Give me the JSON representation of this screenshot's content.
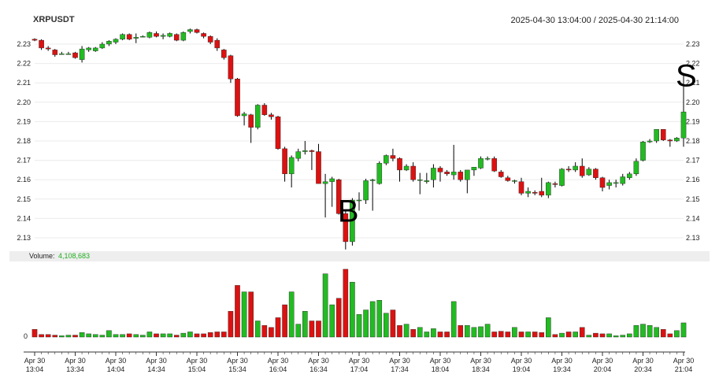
{
  "symbol": "XRPUSDT",
  "time_range": "2025-04-30 13:04:00 / 2025-04-30 21:14:00",
  "volume_label": "Volume:",
  "volume_value": "4,108,683",
  "volume_axis_label": "0",
  "colors": {
    "up": "#22bb22",
    "down": "#dd1111",
    "grid": "#ebebeb",
    "volume_band": "#eeeeee"
  },
  "chart_data": {
    "type": "candlestick",
    "y_ticks": [
      "2.23",
      "2.22",
      "2.21",
      "2.20",
      "2.19",
      "2.18",
      "2.17",
      "2.16",
      "2.15",
      "2.14",
      "2.13"
    ],
    "x_ticks": [
      [
        "Apr 30",
        "13:04"
      ],
      [
        "Apr 30",
        "13:34"
      ],
      [
        "Apr 30",
        "14:04"
      ],
      [
        "Apr 30",
        "14:34"
      ],
      [
        "Apr 30",
        "15:04"
      ],
      [
        "Apr 30",
        "15:34"
      ],
      [
        "Apr 30",
        "16:04"
      ],
      [
        "Apr 30",
        "16:34"
      ],
      [
        "Apr 30",
        "17:04"
      ],
      [
        "Apr 30",
        "17:34"
      ],
      [
        "Apr 30",
        "18:04"
      ],
      [
        "Apr 30",
        "18:34"
      ],
      [
        "Apr 30",
        "19:04"
      ],
      [
        "Apr 30",
        "19:34"
      ],
      [
        "Apr 30",
        "20:04"
      ],
      [
        "Apr 30",
        "20:34"
      ],
      [
        "Apr 30",
        "21:04"
      ]
    ],
    "candles": [
      {
        "o": 2.2325,
        "h": 2.233,
        "l": 2.2315,
        "c": 2.232,
        "v": 0.12
      },
      {
        "o": 2.232,
        "h": 2.2325,
        "l": 2.227,
        "c": 2.228,
        "v": 0.04
      },
      {
        "o": 2.228,
        "h": 2.229,
        "l": 2.2265,
        "c": 2.2275,
        "v": 0.04
      },
      {
        "o": 2.227,
        "h": 2.2275,
        "l": 2.2235,
        "c": 2.2245,
        "v": 0.03
      },
      {
        "o": 2.225,
        "h": 2.226,
        "l": 2.2245,
        "c": 2.225,
        "v": 0.02
      },
      {
        "o": 2.225,
        "h": 2.226,
        "l": 2.2245,
        "c": 2.225,
        "v": 0.03
      },
      {
        "o": 2.2255,
        "h": 2.226,
        "l": 2.2225,
        "c": 2.223,
        "v": 0.03
      },
      {
        "o": 2.222,
        "h": 2.229,
        "l": 2.2205,
        "c": 2.2275,
        "v": 0.07
      },
      {
        "o": 2.227,
        "h": 2.2285,
        "l": 2.226,
        "c": 2.228,
        "v": 0.05
      },
      {
        "o": 2.2265,
        "h": 2.2285,
        "l": 2.226,
        "c": 2.228,
        "v": 0.04
      },
      {
        "o": 2.228,
        "h": 2.231,
        "l": 2.2275,
        "c": 2.23,
        "v": 0.03
      },
      {
        "o": 2.23,
        "h": 2.232,
        "l": 2.229,
        "c": 2.2315,
        "v": 0.1
      },
      {
        "o": 2.231,
        "h": 2.233,
        "l": 2.23,
        "c": 2.2325,
        "v": 0.04
      },
      {
        "o": 2.2325,
        "h": 2.2355,
        "l": 2.232,
        "c": 2.235,
        "v": 0.04
      },
      {
        "o": 2.235,
        "h": 2.2355,
        "l": 2.232,
        "c": 2.2325,
        "v": 0.05
      },
      {
        "o": 2.233,
        "h": 2.2355,
        "l": 2.2305,
        "c": 2.2335,
        "v": 0.04
      },
      {
        "o": 2.234,
        "h": 2.2345,
        "l": 2.2335,
        "c": 2.234,
        "v": 0.03
      },
      {
        "o": 2.2335,
        "h": 2.2365,
        "l": 2.233,
        "c": 2.236,
        "v": 0.08
      },
      {
        "o": 2.2355,
        "h": 2.2365,
        "l": 2.2335,
        "c": 2.234,
        "v": 0.05
      },
      {
        "o": 2.234,
        "h": 2.2355,
        "l": 2.2325,
        "c": 2.2345,
        "v": 0.05
      },
      {
        "o": 2.234,
        "h": 2.236,
        "l": 2.2335,
        "c": 2.2355,
        "v": 0.05
      },
      {
        "o": 2.235,
        "h": 2.2355,
        "l": 2.2315,
        "c": 2.232,
        "v": 0.03
      },
      {
        "o": 2.232,
        "h": 2.2365,
        "l": 2.2315,
        "c": 2.236,
        "v": 0.06
      },
      {
        "o": 2.2365,
        "h": 2.238,
        "l": 2.2355,
        "c": 2.2375,
        "v": 0.08
      },
      {
        "o": 2.2375,
        "h": 2.238,
        "l": 2.2355,
        "c": 2.236,
        "v": 0.05
      },
      {
        "o": 2.2355,
        "h": 2.236,
        "l": 2.233,
        "c": 2.234,
        "v": 0.05
      },
      {
        "o": 2.234,
        "h": 2.2345,
        "l": 2.23,
        "c": 2.231,
        "v": 0.07
      },
      {
        "o": 2.232,
        "h": 2.233,
        "l": 2.2265,
        "c": 2.228,
        "v": 0.08
      },
      {
        "o": 2.227,
        "h": 2.2275,
        "l": 2.222,
        "c": 2.223,
        "v": 0.08
      },
      {
        "o": 2.224,
        "h": 2.2245,
        "l": 2.21,
        "c": 2.212,
        "v": 0.4
      },
      {
        "o": 2.212,
        "h": 2.2125,
        "l": 2.1925,
        "c": 2.193,
        "v": 0.8
      },
      {
        "o": 2.193,
        "h": 2.195,
        "l": 2.188,
        "c": 2.194,
        "v": 0.7
      },
      {
        "o": 2.1935,
        "h": 2.194,
        "l": 2.179,
        "c": 2.187,
        "v": 0.7
      },
      {
        "o": 2.187,
        "h": 2.199,
        "l": 2.186,
        "c": 2.1985,
        "v": 0.25
      },
      {
        "o": 2.1985,
        "h": 2.1995,
        "l": 2.193,
        "c": 2.1935,
        "v": 0.18
      },
      {
        "o": 2.1935,
        "h": 2.1945,
        "l": 2.191,
        "c": 2.1925,
        "v": 0.15
      },
      {
        "o": 2.1925,
        "h": 2.193,
        "l": 2.1755,
        "c": 2.176,
        "v": 0.3
      },
      {
        "o": 2.176,
        "h": 2.177,
        "l": 2.159,
        "c": 2.163,
        "v": 0.5
      },
      {
        "o": 2.163,
        "h": 2.1725,
        "l": 2.156,
        "c": 2.1715,
        "v": 0.7
      },
      {
        "o": 2.171,
        "h": 2.176,
        "l": 2.1695,
        "c": 2.1745,
        "v": 0.2
      },
      {
        "o": 2.1745,
        "h": 2.18,
        "l": 2.173,
        "c": 2.175,
        "v": 0.4
      },
      {
        "o": 2.175,
        "h": 2.1755,
        "l": 2.165,
        "c": 2.1745,
        "v": 0.25
      },
      {
        "o": 2.1745,
        "h": 2.1785,
        "l": 2.158,
        "c": 2.158,
        "v": 0.25
      },
      {
        "o": 2.158,
        "h": 2.163,
        "l": 2.1405,
        "c": 2.159,
        "v": 0.98
      },
      {
        "o": 2.159,
        "h": 2.1615,
        "l": 2.146,
        "c": 2.1605,
        "v": 0.5
      },
      {
        "o": 2.16,
        "h": 2.1605,
        "l": 2.142,
        "c": 2.1425,
        "v": 0.6
      },
      {
        "o": 2.1425,
        "h": 2.144,
        "l": 2.124,
        "c": 2.128,
        "v": 1.05
      },
      {
        "o": 2.128,
        "h": 2.1505,
        "l": 2.126,
        "c": 2.1495,
        "v": 0.85
      },
      {
        "o": 2.1495,
        "h": 2.1535,
        "l": 2.144,
        "c": 2.1495,
        "v": 0.35
      },
      {
        "o": 2.1495,
        "h": 2.1605,
        "l": 2.1475,
        "c": 2.1595,
        "v": 0.42
      },
      {
        "o": 2.1595,
        "h": 2.1605,
        "l": 2.144,
        "c": 2.16,
        "v": 0.55
      },
      {
        "o": 2.158,
        "h": 2.1695,
        "l": 2.1575,
        "c": 2.1685,
        "v": 0.57
      },
      {
        "o": 2.1685,
        "h": 2.173,
        "l": 2.1675,
        "c": 2.1725,
        "v": 0.37
      },
      {
        "o": 2.1725,
        "h": 2.176,
        "l": 2.1695,
        "c": 2.171,
        "v": 0.42
      },
      {
        "o": 2.171,
        "h": 2.1715,
        "l": 2.159,
        "c": 2.165,
        "v": 0.18
      },
      {
        "o": 2.165,
        "h": 2.168,
        "l": 2.1645,
        "c": 2.167,
        "v": 0.2
      },
      {
        "o": 2.167,
        "h": 2.169,
        "l": 2.159,
        "c": 2.16,
        "v": 0.12
      },
      {
        "o": 2.16,
        "h": 2.1635,
        "l": 2.1525,
        "c": 2.16,
        "v": 0.15
      },
      {
        "o": 2.159,
        "h": 2.1635,
        "l": 2.158,
        "c": 2.1595,
        "v": 0.08
      },
      {
        "o": 2.16,
        "h": 2.168,
        "l": 2.156,
        "c": 2.166,
        "v": 0.13
      },
      {
        "o": 2.166,
        "h": 2.167,
        "l": 2.159,
        "c": 2.164,
        "v": 0.08
      },
      {
        "o": 2.164,
        "h": 2.165,
        "l": 2.162,
        "c": 2.163,
        "v": 0.08
      },
      {
        "o": 2.1625,
        "h": 2.178,
        "l": 2.16,
        "c": 2.164,
        "v": 0.55
      },
      {
        "o": 2.164,
        "h": 2.165,
        "l": 2.159,
        "c": 2.16,
        "v": 0.18
      },
      {
        "o": 2.16,
        "h": 2.165,
        "l": 2.153,
        "c": 2.165,
        "v": 0.18
      },
      {
        "o": 2.165,
        "h": 2.1665,
        "l": 2.162,
        "c": 2.1665,
        "v": 0.15
      },
      {
        "o": 2.166,
        "h": 2.172,
        "l": 2.1655,
        "c": 2.171,
        "v": 0.16
      },
      {
        "o": 2.171,
        "h": 2.172,
        "l": 2.17,
        "c": 2.171,
        "v": 0.2
      },
      {
        "o": 2.171,
        "h": 2.172,
        "l": 2.164,
        "c": 2.1645,
        "v": 0.08
      },
      {
        "o": 2.164,
        "h": 2.165,
        "l": 2.161,
        "c": 2.1615,
        "v": 0.09
      },
      {
        "o": 2.161,
        "h": 2.162,
        "l": 2.159,
        "c": 2.1595,
        "v": 0.08
      },
      {
        "o": 2.1595,
        "h": 2.16,
        "l": 2.158,
        "c": 2.1595,
        "v": 0.15
      },
      {
        "o": 2.159,
        "h": 2.161,
        "l": 2.152,
        "c": 2.153,
        "v": 0.08
      },
      {
        "o": 2.153,
        "h": 2.156,
        "l": 2.151,
        "c": 2.154,
        "v": 0.08
      },
      {
        "o": 2.1535,
        "h": 2.1545,
        "l": 2.152,
        "c": 2.153,
        "v": 0.08
      },
      {
        "o": 2.154,
        "h": 2.161,
        "l": 2.151,
        "c": 2.152,
        "v": 0.07
      },
      {
        "o": 2.152,
        "h": 2.159,
        "l": 2.1505,
        "c": 2.1585,
        "v": 0.3
      },
      {
        "o": 2.158,
        "h": 2.159,
        "l": 2.156,
        "c": 2.1575,
        "v": 0.04
      },
      {
        "o": 2.157,
        "h": 2.166,
        "l": 2.1565,
        "c": 2.1655,
        "v": 0.06
      },
      {
        "o": 2.1655,
        "h": 2.167,
        "l": 2.164,
        "c": 2.165,
        "v": 0.08
      },
      {
        "o": 2.165,
        "h": 2.169,
        "l": 2.164,
        "c": 2.167,
        "v": 0.08
      },
      {
        "o": 2.167,
        "h": 2.171,
        "l": 2.161,
        "c": 2.162,
        "v": 0.15
      },
      {
        "o": 2.1625,
        "h": 2.1665,
        "l": 2.162,
        "c": 2.1655,
        "v": 0.03
      },
      {
        "o": 2.1655,
        "h": 2.166,
        "l": 2.16,
        "c": 2.161,
        "v": 0.06
      },
      {
        "o": 2.161,
        "h": 2.1615,
        "l": 2.154,
        "c": 2.156,
        "v": 0.05
      },
      {
        "o": 2.157,
        "h": 2.16,
        "l": 2.155,
        "c": 2.1585,
        "v": 0.05
      },
      {
        "o": 2.1585,
        "h": 2.16,
        "l": 2.156,
        "c": 2.1585,
        "v": 0.02
      },
      {
        "o": 2.158,
        "h": 2.163,
        "l": 2.157,
        "c": 2.1615,
        "v": 0.03
      },
      {
        "o": 2.161,
        "h": 2.164,
        "l": 2.16,
        "c": 2.163,
        "v": 0.05
      },
      {
        "o": 2.163,
        "h": 2.171,
        "l": 2.162,
        "c": 2.1695,
        "v": 0.18
      },
      {
        "o": 2.17,
        "h": 2.18,
        "l": 2.1695,
        "c": 2.1795,
        "v": 0.2
      },
      {
        "o": 2.1795,
        "h": 2.181,
        "l": 2.179,
        "c": 2.18,
        "v": 0.18
      },
      {
        "o": 2.18,
        "h": 2.186,
        "l": 2.179,
        "c": 2.186,
        "v": 0.15
      },
      {
        "o": 2.186,
        "h": 2.186,
        "l": 2.18,
        "c": 2.1805,
        "v": 0.12
      },
      {
        "o": 2.1805,
        "h": 2.181,
        "l": 2.177,
        "c": 2.18,
        "v": 0.05
      },
      {
        "o": 2.18,
        "h": 2.182,
        "l": 2.1795,
        "c": 2.1815,
        "v": 0.1
      },
      {
        "o": 2.1815,
        "h": 2.214,
        "l": 2.177,
        "c": 2.195,
        "v": 0.22
      }
    ],
    "annotations": [
      {
        "text": "B",
        "index": 46
      },
      {
        "text": "S",
        "index": 96
      }
    ]
  }
}
